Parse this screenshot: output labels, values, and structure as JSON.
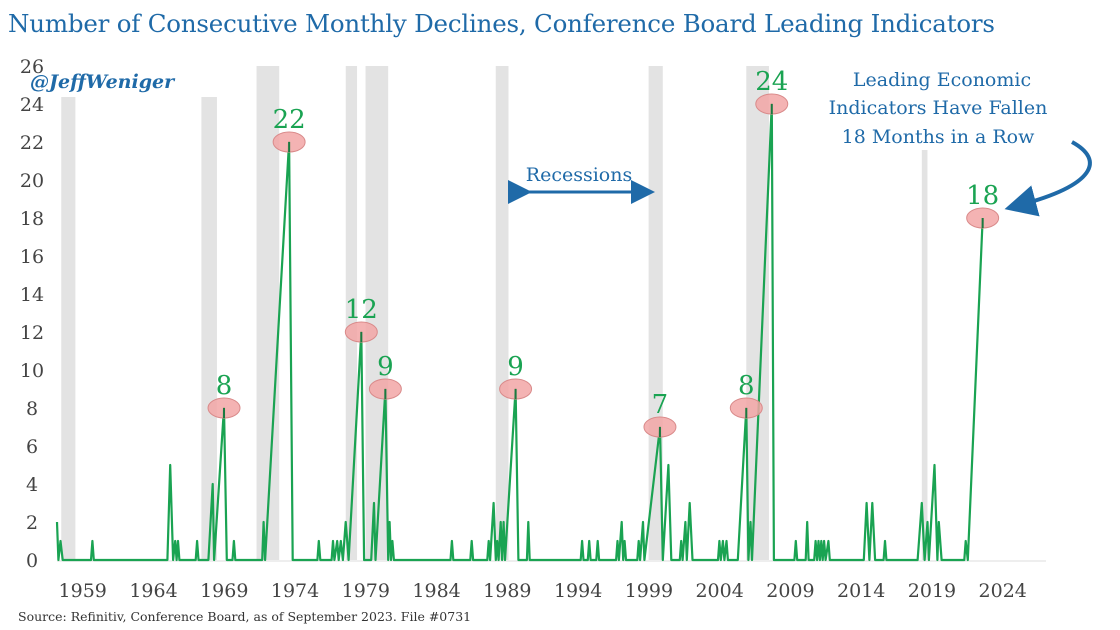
{
  "chart_data": {
    "type": "line",
    "title": "Number of Consecutive Monthly Declines, Conference Board Leading Indicators",
    "xlabel": "",
    "ylabel": "",
    "xlim": [
      1958.1,
      2028.0
    ],
    "ylim": [
      0,
      26
    ],
    "y_ticks": [
      0,
      2,
      4,
      6,
      8,
      10,
      12,
      14,
      16,
      18,
      20,
      22,
      24,
      26
    ],
    "x_ticks": [
      1959,
      1964,
      1969,
      1974,
      1979,
      1984,
      1989,
      1994,
      1999,
      2004,
      2009,
      2014,
      2019,
      2024
    ],
    "grid": false,
    "series": [
      {
        "name": "Consecutive monthly declines",
        "color": "#1aa352",
        "points": [
          [
            1958.1,
            2
          ],
          [
            1958.2,
            0
          ],
          [
            1958.35,
            1
          ],
          [
            1958.5,
            0
          ],
          [
            1958.9,
            0
          ],
          [
            1960.5,
            0
          ],
          [
            1960.6,
            1
          ],
          [
            1960.7,
            0
          ],
          [
            1965.9,
            0
          ],
          [
            1966.1,
            5
          ],
          [
            1966.3,
            0
          ],
          [
            1966.45,
            1
          ],
          [
            1966.55,
            0
          ],
          [
            1966.65,
            1
          ],
          [
            1966.75,
            0
          ],
          [
            1967.9,
            0
          ],
          [
            1968.0,
            1
          ],
          [
            1968.1,
            0
          ],
          [
            1968.8,
            0
          ],
          [
            1969.1,
            4
          ],
          [
            1969.2,
            0
          ],
          [
            1969.9,
            8
          ],
          [
            1970.1,
            0
          ],
          [
            1970.5,
            0
          ],
          [
            1970.6,
            1
          ],
          [
            1970.7,
            0
          ],
          [
            1972.6,
            0
          ],
          [
            1972.7,
            2
          ],
          [
            1972.8,
            0
          ],
          [
            1974.5,
            22
          ],
          [
            1974.75,
            0
          ],
          [
            1976.5,
            0
          ],
          [
            1976.6,
            1
          ],
          [
            1976.7,
            0
          ],
          [
            1977.5,
            0
          ],
          [
            1977.6,
            1
          ],
          [
            1977.7,
            0
          ],
          [
            1977.9,
            1
          ],
          [
            1978.0,
            0
          ],
          [
            1978.15,
            1
          ],
          [
            1978.3,
            0
          ],
          [
            1978.4,
            1
          ],
          [
            1978.5,
            2
          ],
          [
            1978.6,
            1
          ],
          [
            1978.7,
            0
          ],
          [
            1979.6,
            12
          ],
          [
            1979.8,
            0
          ],
          [
            1980.3,
            0
          ],
          [
            1980.5,
            3
          ],
          [
            1980.6,
            0
          ],
          [
            1981.3,
            9
          ],
          [
            1981.5,
            0
          ],
          [
            1981.6,
            2
          ],
          [
            1981.7,
            0
          ],
          [
            1981.8,
            1
          ],
          [
            1981.9,
            0
          ],
          [
            1985.9,
            0
          ],
          [
            1986.0,
            1
          ],
          [
            1986.1,
            0
          ],
          [
            1987.3,
            0
          ],
          [
            1987.4,
            1
          ],
          [
            1987.5,
            0
          ],
          [
            1988.5,
            0
          ],
          [
            1988.6,
            1
          ],
          [
            1988.7,
            0
          ],
          [
            1988.95,
            3
          ],
          [
            1989.1,
            0
          ],
          [
            1989.2,
            1
          ],
          [
            1989.3,
            0
          ],
          [
            1989.45,
            2
          ],
          [
            1989.55,
            0
          ],
          [
            1989.65,
            2
          ],
          [
            1989.75,
            0
          ],
          [
            1990.5,
            9
          ],
          [
            1990.7,
            0
          ],
          [
            1991.3,
            0
          ],
          [
            1991.4,
            2
          ],
          [
            1991.5,
            0
          ],
          [
            1995.1,
            0
          ],
          [
            1995.2,
            1
          ],
          [
            1995.3,
            0
          ],
          [
            1995.6,
            0
          ],
          [
            1995.7,
            1
          ],
          [
            1995.8,
            0
          ],
          [
            1996.2,
            0
          ],
          [
            1996.3,
            1
          ],
          [
            1996.4,
            0
          ],
          [
            1997.6,
            0
          ],
          [
            1997.7,
            1
          ],
          [
            1997.8,
            0
          ],
          [
            1998.0,
            2
          ],
          [
            1998.1,
            0
          ],
          [
            1998.2,
            1
          ],
          [
            1998.3,
            0
          ],
          [
            1999.1,
            0
          ],
          [
            1999.2,
            1
          ],
          [
            1999.3,
            0
          ],
          [
            1999.5,
            2
          ],
          [
            1999.6,
            0
          ],
          [
            2000.7,
            7
          ],
          [
            2000.9,
            0
          ],
          [
            2001.3,
            5
          ],
          [
            2001.5,
            0
          ],
          [
            2002.1,
            0
          ],
          [
            2002.2,
            1
          ],
          [
            2002.3,
            0
          ],
          [
            2002.5,
            2
          ],
          [
            2002.6,
            0
          ],
          [
            2002.8,
            3
          ],
          [
            2003.0,
            0
          ],
          [
            2004.8,
            0
          ],
          [
            2004.9,
            1
          ],
          [
            2005.0,
            0
          ],
          [
            2005.15,
            1
          ],
          [
            2005.25,
            0
          ],
          [
            2005.4,
            1
          ],
          [
            2005.5,
            0
          ],
          [
            2006.2,
            0
          ],
          [
            2006.8,
            8
          ],
          [
            2006.95,
            0
          ],
          [
            2007.1,
            2
          ],
          [
            2007.2,
            0
          ],
          [
            2008.6,
            24
          ],
          [
            2008.75,
            0
          ],
          [
            2010.2,
            0
          ],
          [
            2010.3,
            1
          ],
          [
            2010.4,
            0
          ],
          [
            2011.0,
            0
          ],
          [
            2011.1,
            2
          ],
          [
            2011.2,
            0
          ],
          [
            2011.6,
            0
          ],
          [
            2011.7,
            1
          ],
          [
            2011.8,
            0
          ],
          [
            2011.9,
            1
          ],
          [
            2012.0,
            0
          ],
          [
            2012.1,
            1
          ],
          [
            2012.2,
            0
          ],
          [
            2012.3,
            1
          ],
          [
            2012.4,
            0
          ],
          [
            2012.6,
            1
          ],
          [
            2012.7,
            0
          ],
          [
            2015.1,
            0
          ],
          [
            2015.3,
            3
          ],
          [
            2015.5,
            0
          ],
          [
            2015.7,
            3
          ],
          [
            2015.9,
            0
          ],
          [
            2016.5,
            0
          ],
          [
            2016.6,
            1
          ],
          [
            2016.7,
            0
          ],
          [
            2018.9,
            0
          ],
          [
            2019.2,
            3
          ],
          [
            2019.4,
            0
          ],
          [
            2019.6,
            2
          ],
          [
            2019.7,
            0
          ],
          [
            2020.1,
            5
          ],
          [
            2020.3,
            0
          ],
          [
            2020.4,
            2
          ],
          [
            2020.6,
            0
          ],
          [
            2022.2,
            0
          ],
          [
            2022.3,
            1
          ],
          [
            2022.45,
            0
          ],
          [
            2023.5,
            18
          ]
        ]
      }
    ],
    "recessions": [
      [
        1958.4,
        1959.4
      ],
      [
        1968.3,
        1969.4
      ],
      [
        1972.2,
        1973.8
      ],
      [
        1978.5,
        1979.3
      ],
      [
        1979.9,
        1981.5
      ],
      [
        1989.1,
        1990.0
      ],
      [
        1999.9,
        2000.9
      ],
      [
        2006.8,
        2008.4
      ],
      [
        2019.2,
        2019.6
      ]
    ],
    "annotations": {
      "peak_labels": [
        {
          "x": 1969.9,
          "y": 8,
          "label": "8"
        },
        {
          "x": 1974.5,
          "y": 22,
          "label": "22"
        },
        {
          "x": 1979.6,
          "y": 12,
          "label": "12"
        },
        {
          "x": 1981.3,
          "y": 9,
          "label": "9"
        },
        {
          "x": 1990.5,
          "y": 9,
          "label": "9"
        },
        {
          "x": 2000.7,
          "y": 7,
          "label": "7"
        },
        {
          "x": 2006.8,
          "y": 8,
          "label": "8"
        },
        {
          "x": 2008.6,
          "y": 24,
          "label": "24"
        },
        {
          "x": 2023.5,
          "y": 18,
          "label": "18"
        }
      ],
      "recessions_label": "Recessions",
      "callout_lines": [
        "Leading Economic",
        "Indicators Have Fallen",
        "18 Months in a Row"
      ],
      "handle": "@JeffWeniger"
    },
    "colors": {
      "line": "#1aa352",
      "marker_fill": "#f2a6a6",
      "recession_band": "#e3e3e3",
      "annotation": "#1f6aa8",
      "title": "#1f6aa8"
    }
  },
  "source_note": "Source: Refinitiv, Conference Board, as of September 2023. File #0731"
}
